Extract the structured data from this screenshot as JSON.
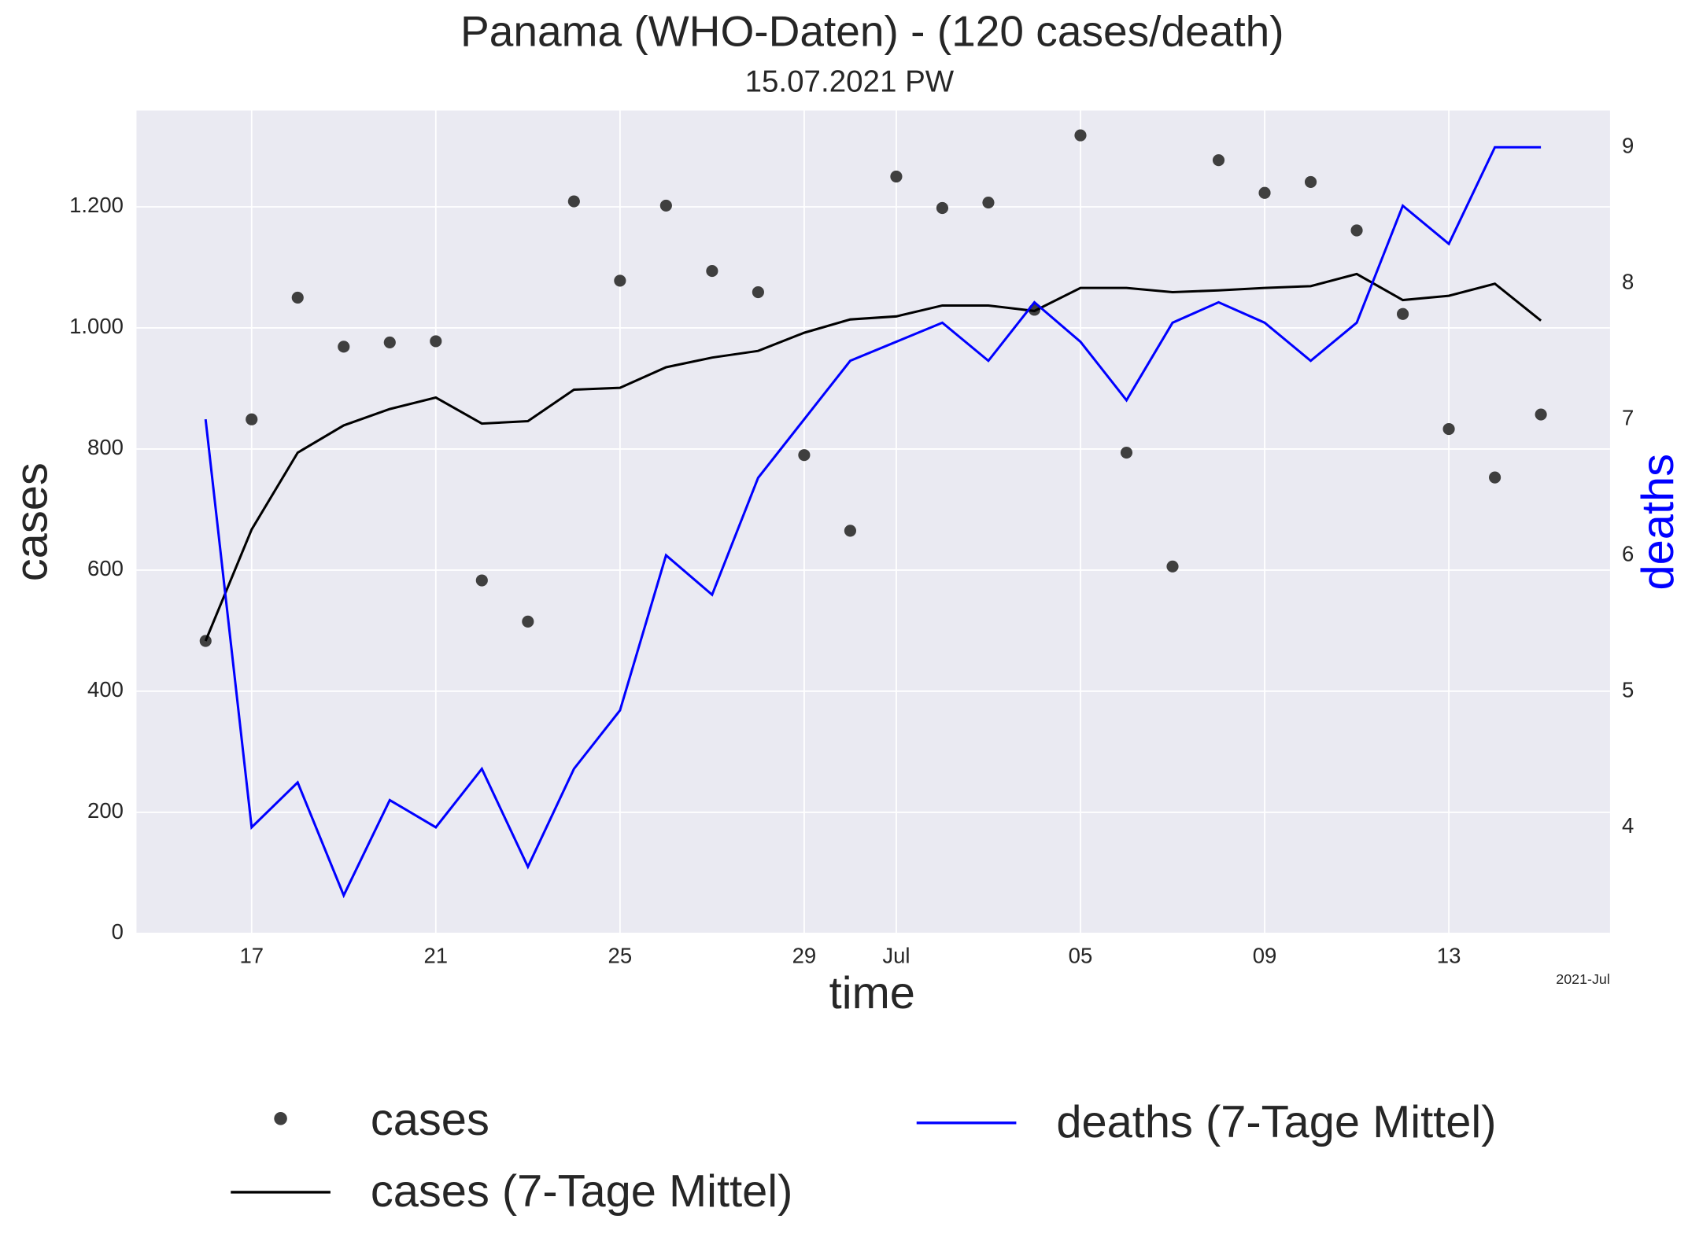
{
  "chart_data": {
    "type": "line",
    "title": "Panama (WHO-Daten) - (120 cases/death)",
    "subtitle": "15.07.2021 PW",
    "x_label": "time",
    "y_label": "cases",
    "y2_label": "deaths",
    "x_offset_label": "2021-Jul",
    "x": [
      "2021-06-16",
      "2021-06-17",
      "2021-06-18",
      "2021-06-19",
      "2021-06-20",
      "2021-06-21",
      "2021-06-22",
      "2021-06-23",
      "2021-06-24",
      "2021-06-25",
      "2021-06-26",
      "2021-06-27",
      "2021-06-28",
      "2021-06-29",
      "2021-06-30",
      "2021-07-01",
      "2021-07-02",
      "2021-07-03",
      "2021-07-04",
      "2021-07-05",
      "2021-07-06",
      "2021-07-07",
      "2021-07-08",
      "2021-07-09",
      "2021-07-10",
      "2021-07-11",
      "2021-07-12",
      "2021-07-13",
      "2021-07-14",
      "2021-07-15"
    ],
    "series": [
      {
        "name": "cases",
        "color": "#3f3f3f",
        "style": "dots",
        "values": [
          483,
          849,
          1050,
          969,
          976,
          978,
          583,
          515,
          1209,
          1078,
          1202,
          1094,
          1059,
          790,
          665,
          1250,
          1198,
          1207,
          1030,
          1318,
          794,
          606,
          1277,
          1223,
          1241,
          1161,
          1023,
          833,
          753,
          857
        ]
      },
      {
        "name": "cases (7-Tage Mittel)",
        "color": "#000000",
        "style": "line",
        "values": [
          483,
          667,
          794,
          839,
          866,
          885,
          842,
          846,
          898,
          901,
          935,
          951,
          962,
          992,
          1014,
          1019,
          1037,
          1037,
          1028,
          1066,
          1066,
          1059,
          1062,
          1066,
          1069,
          1089,
          1046,
          1053,
          1073,
          1012
        ]
      },
      {
        "name": "deaths (7-Tage Mittel)",
        "color": "#0000ff",
        "style": "line",
        "axis": "y2",
        "values": [
          7.0,
          4.0,
          4.33,
          3.5,
          4.2,
          4.0,
          4.43,
          3.71,
          4.43,
          4.86,
          6.0,
          5.71,
          6.57,
          7.0,
          7.43,
          7.57,
          7.71,
          7.43,
          7.86,
          7.57,
          7.14,
          7.71,
          7.86,
          7.71,
          7.43,
          7.71,
          8.57,
          8.29,
          9.0,
          9.0
        ]
      }
    ],
    "xlim": [
      "2021-06-14T12",
      "2021-07-16T12"
    ],
    "xticks": [
      {
        "value": "2021-06-17",
        "label": "17"
      },
      {
        "value": "2021-06-21",
        "label": "21"
      },
      {
        "value": "2021-06-25",
        "label": "25"
      },
      {
        "value": "2021-06-29",
        "label": "29"
      },
      {
        "value": "2021-07-01",
        "label": "Jul"
      },
      {
        "value": "2021-07-05",
        "label": "05"
      },
      {
        "value": "2021-07-09",
        "label": "09"
      },
      {
        "value": "2021-07-13",
        "label": "13"
      }
    ],
    "ylim": [
      0,
      1359
    ],
    "yticks": [
      0,
      200,
      400,
      600,
      800,
      {
        "value": 1000,
        "label": "1.000"
      },
      {
        "value": 1200,
        "label": "1.200"
      }
    ],
    "y2lim": [
      3.22,
      9.27
    ],
    "y2ticks": [
      4,
      5,
      6,
      7,
      8,
      9
    ],
    "y2_label_color": "#0000ff",
    "grid": true,
    "background": "#eaeaf2",
    "legend": "bottom"
  }
}
